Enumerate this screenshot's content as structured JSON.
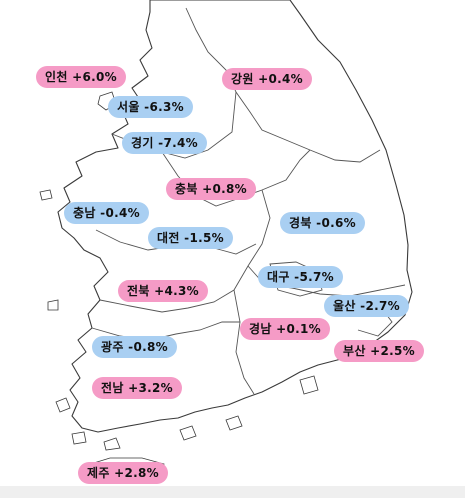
{
  "colors": {
    "increase": "#f59bc6",
    "decrease": "#a9cff2",
    "coastline": "#3a3a3a"
  },
  "regions": [
    {
      "key": "incheon",
      "text": "인천 +6.0%",
      "trend": "up"
    },
    {
      "key": "seoul",
      "text": "서울 -6.3%",
      "trend": "down"
    },
    {
      "key": "gyeonggi",
      "text": "경기 -7.4%",
      "trend": "down"
    },
    {
      "key": "gangwon",
      "text": "강원 +0.4%",
      "trend": "up"
    },
    {
      "key": "chungbuk",
      "text": "충북 +0.8%",
      "trend": "up"
    },
    {
      "key": "chungnam",
      "text": "충남 -0.4%",
      "trend": "down"
    },
    {
      "key": "daejeon",
      "text": "대전 -1.5%",
      "trend": "down"
    },
    {
      "key": "gyeongbuk",
      "text": "경북 -0.6%",
      "trend": "down"
    },
    {
      "key": "daegu",
      "text": "대구 -5.7%",
      "trend": "down"
    },
    {
      "key": "ulsan",
      "text": "울산 -2.7%",
      "trend": "down"
    },
    {
      "key": "jeonbuk",
      "text": "전북 +4.3%",
      "trend": "up"
    },
    {
      "key": "gyeongnam",
      "text": "경남 +0.1%",
      "trend": "up"
    },
    {
      "key": "busan",
      "text": "부산 +2.5%",
      "trend": "up"
    },
    {
      "key": "gwangju",
      "text": "광주 -0.8%",
      "trend": "down"
    },
    {
      "key": "jeonnam",
      "text": "전남 +3.2%",
      "trend": "up"
    },
    {
      "key": "jeju",
      "text": "제주 +2.8%",
      "trend": "up"
    }
  ]
}
